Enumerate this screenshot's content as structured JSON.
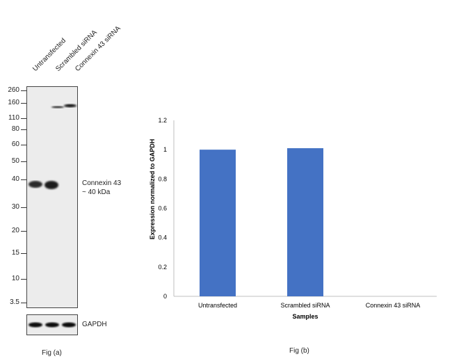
{
  "figure_a": {
    "caption": "Fig (a)",
    "lanes": [
      "Untransfected",
      "Scrambled siRNA",
      "Connexin 43 siRNA"
    ],
    "markers": [
      "260",
      "160",
      "110",
      "80",
      "60",
      "50",
      "40",
      "30",
      "20",
      "15",
      "10",
      "3.5"
    ],
    "band_label_line1": "Connexin 43",
    "band_label_line2": "~ 40 kDa",
    "loading_control": "GAPDH"
  },
  "figure_b": {
    "caption": "Fig (b)"
  },
  "chart_data": {
    "type": "bar",
    "categories": [
      "Untransfected",
      "Scrambled siRNA",
      "Connexin 43 siRNA"
    ],
    "values": [
      1.0,
      1.01,
      0.0
    ],
    "xlabel": "Samples",
    "ylabel": "Expression  normalized to GAPDH",
    "ylim": [
      0,
      1.2
    ],
    "yticks": [
      "0",
      "0.2",
      "0.4",
      "0.6",
      "0.8",
      "1",
      "1.2"
    ],
    "bar_color": "#4472c4",
    "grid": false
  }
}
